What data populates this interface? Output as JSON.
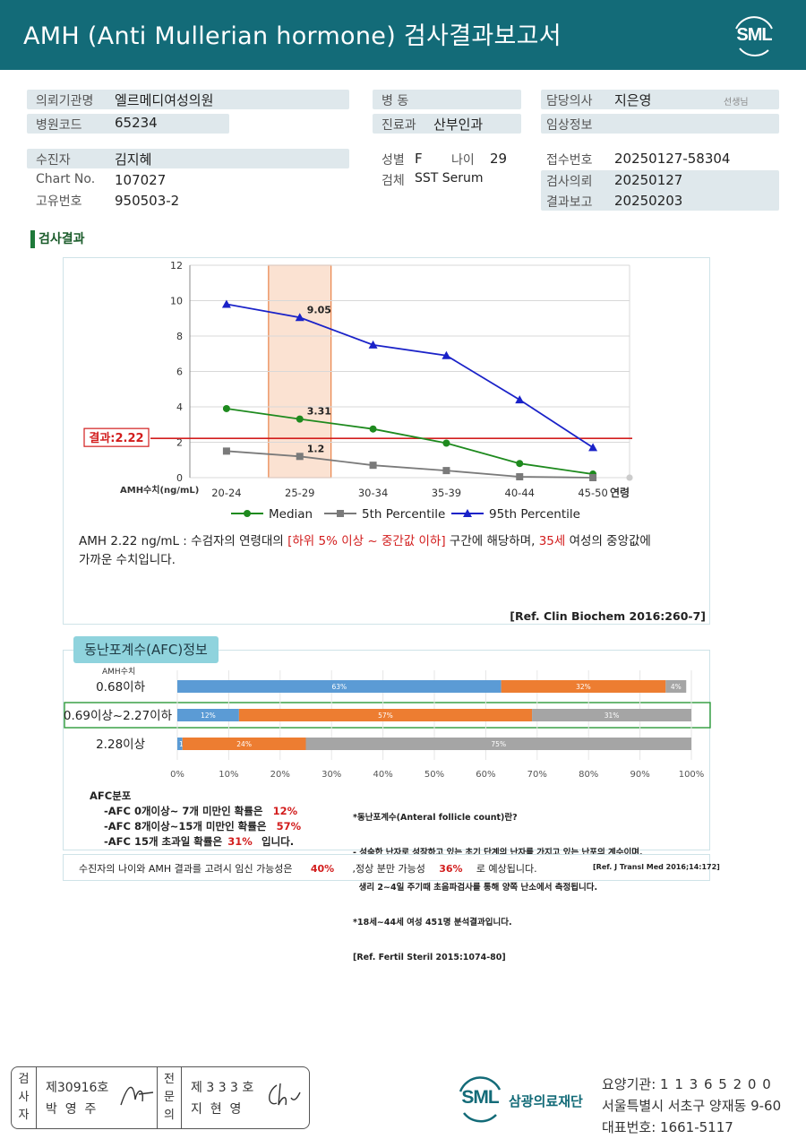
{
  "header": {
    "title": "AMH (Anti Mullerian hormone) 검사결과보고서",
    "logo": "SML"
  },
  "info": {
    "institution_label": "의뢰기관명",
    "institution": "엘르메디여성의원",
    "hospital_code_label": "병원코드",
    "hospital_code": "65234",
    "ward_label": "병   동",
    "ward": "",
    "dept_label": "진료과",
    "dept": "산부인과",
    "doctor_label": "담당의사",
    "doctor": "지은영",
    "doctor_suffix": "선생님",
    "clinical_label": "임상정보",
    "clinical": "",
    "patient_label": "수진자",
    "patient": "김지혜",
    "chart_label": "Chart No.",
    "chart": "107027",
    "unique_label": "고유번호",
    "unique": "950503-2",
    "sex_label": "성별",
    "sex": "F",
    "age_label": "나이",
    "age": "29",
    "specimen_label": "검체",
    "specimen": "SST Serum",
    "reception_label": "접수번호",
    "reception": "20250127-58304",
    "request_label": "검사의뢰",
    "request": "20250127",
    "report_label": "결과보고",
    "report": "20250203"
  },
  "section_title": "검사결과",
  "chart_data": {
    "type": "line",
    "categories": [
      "20-24",
      "25-29",
      "30-34",
      "35-39",
      "40-44",
      "45-50"
    ],
    "x_axis_suffix": "연령",
    "ylabel": "AMH수치(ng/mL)",
    "ylim": [
      0,
      12
    ],
    "yticks": [
      0,
      2,
      4,
      6,
      8,
      10,
      12
    ],
    "series": [
      {
        "name": "Median",
        "color": "#1e8a1e",
        "marker": "circle",
        "values": [
          3.9,
          3.31,
          2.75,
          1.95,
          0.8,
          0.2
        ]
      },
      {
        "name": "5th Percentile",
        "color": "#7a7a7a",
        "marker": "square",
        "values": [
          1.5,
          1.2,
          0.7,
          0.4,
          0.05,
          0.0
        ]
      },
      {
        "name": "95th Percentile",
        "color": "#1a22c8",
        "marker": "triangle",
        "values": [
          9.8,
          9.05,
          7.5,
          6.9,
          4.4,
          1.7
        ]
      }
    ],
    "data_labels": [
      {
        "category": "25-29",
        "value": 9.05,
        "text": "9.05"
      },
      {
        "category": "25-29",
        "value": 3.31,
        "text": "3.31"
      },
      {
        "category": "25-29",
        "value": 1.2,
        "text": "1.2"
      }
    ],
    "highlight_category": "25-29",
    "result_line": {
      "value": 2.22,
      "label": "결과:2.22",
      "color": "#d21d1d"
    },
    "legend_placement": "bottom",
    "grid": true
  },
  "interpretation": {
    "p1": "AMH  2.22 ng/mL : 수검자의 연령대의 ",
    "p2": "[하위 5% 이상 ~ 중간값 이하]",
    "p3": "  구간에 해당하며, ",
    "p4": "35세",
    "p5": " 여성의 중앙값에",
    "line2": "가까운 수치입니다.",
    "ref": "[Ref. Clin Biochem 2016:260-7]"
  },
  "afc": {
    "tab": "동난포계수(AFC)정보",
    "amh_label": "AMH수치",
    "rows": [
      {
        "label": "0.68이하",
        "segments": [
          {
            "value": 63,
            "text": "63%",
            "color": "#5b9bd5"
          },
          {
            "value": 32,
            "text": "32%",
            "color": "#ed7d31"
          },
          {
            "value": 4,
            "text": "4%",
            "color": "#a5a5a5"
          }
        ]
      },
      {
        "label": "0.69이상~2.27이하",
        "segments": [
          {
            "value": 12,
            "text": "12%",
            "color": "#5b9bd5"
          },
          {
            "value": 57,
            "text": "57%",
            "color": "#ed7d31"
          },
          {
            "value": 31,
            "text": "31%",
            "color": "#a5a5a5"
          }
        ]
      },
      {
        "label": "2.28이상",
        "segments": [
          {
            "value": 1,
            "text": "1%",
            "color": "#5b9bd5"
          },
          {
            "value": 24,
            "text": "24%",
            "color": "#ed7d31"
          },
          {
            "value": 75,
            "text": "75%",
            "color": "#a5a5a5"
          }
        ]
      }
    ],
    "highlight_row": 1,
    "axis": [
      "0%",
      "10%",
      "20%",
      "30%",
      "40%",
      "50%",
      "60%",
      "70%",
      "80%",
      "90%",
      "100%"
    ],
    "dist_title": "AFC분포",
    "dist": [
      {
        "text": "-AFC  0개이상~ 7개 미만인 확률은",
        "pct": "12%",
        "tail": ""
      },
      {
        "text": "-AFC  8개이상~15개 미만인 확률은",
        "pct": "57%",
        "tail": ""
      },
      {
        "text": "-AFC  15개 초과일 확률은",
        "pct": "31%",
        "tail": " 입니다."
      }
    ],
    "note1": "*동난포계수(Anteral follicle count)란?",
    "note2": "- 성숙한 난자로 성장하고 있는 초기 단계의 난자를 가지고 있는 난포의 계수이며,",
    "note3": "  생리 2~4일 주기때 초음파검사를 통해 양쪽 난소에서 측정됩니다.",
    "note4": "*18세~44세 여성 451명 분석결과입니다.",
    "note5": "[Ref. Fertil Steril 2015:1074-80]"
  },
  "bottom_line": {
    "a": "수진자의  나이와 AMH 결과를 고려시 임신 가능성은",
    "b": "40%",
    "c": ",정상 분만 가능성",
    "d": "36%",
    "e": "로 예상됩니다.",
    "ref": "[Ref. J Transl Med 2016;14:172]"
  },
  "footer": {
    "examiner_label": "검 사 자",
    "examiner_no": "제30916호",
    "examiner_name": "박  영  주",
    "specialist_label": "전 문 의",
    "specialist_no": "제 3 3 3 호",
    "specialist_name": "지  현  영",
    "org_logo": "SML",
    "org_name": "삼광의료재단",
    "code_label": "요양기관:",
    "code": "1 1 3 6 5 2 0 0",
    "address": "서울특별시 서초구 양재동 9-60",
    "phone_label": "대표번호:",
    "phone": "1661-5117"
  }
}
